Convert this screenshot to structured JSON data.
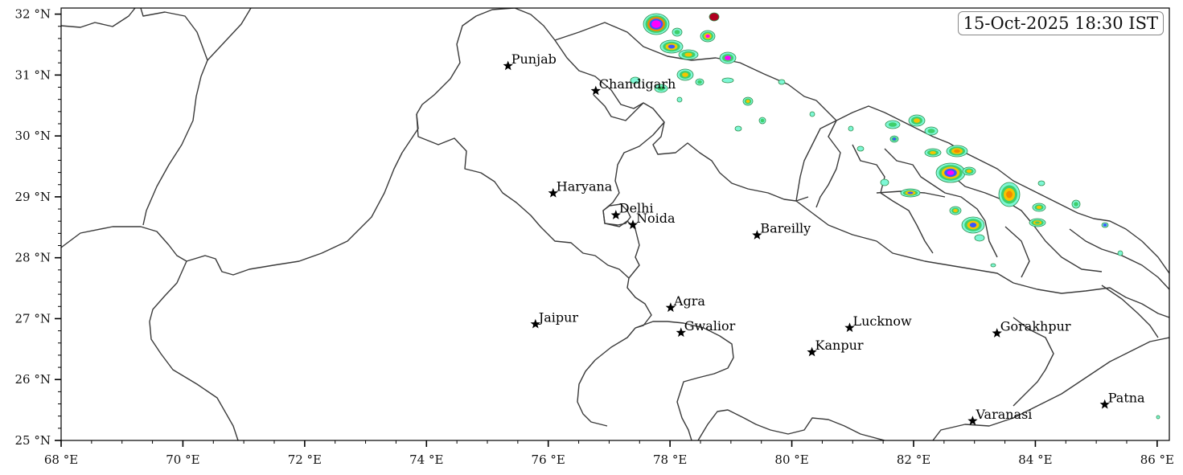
{
  "timestamp": "15-Oct-2025 18:30 IST",
  "axes": {
    "lon_min": 68,
    "lon_max": 86.2,
    "lat_min": 25,
    "lat_max": 32.1,
    "x_ticks": [
      {
        "value": 68,
        "label": "68 °E"
      },
      {
        "value": 70,
        "label": "70 °E"
      },
      {
        "value": 72,
        "label": "72 °E"
      },
      {
        "value": 74,
        "label": "74 °E"
      },
      {
        "value": 76,
        "label": "76 °E"
      },
      {
        "value": 78,
        "label": "78 °E"
      },
      {
        "value": 80,
        "label": "80 °E"
      },
      {
        "value": 82,
        "label": "82 °E"
      },
      {
        "value": 84,
        "label": "84 °E"
      },
      {
        "value": 86,
        "label": "86 °E"
      }
    ],
    "y_ticks": [
      {
        "value": 25,
        "label": "25 °N"
      },
      {
        "value": 26,
        "label": "26 °N"
      },
      {
        "value": 27,
        "label": "27 °N"
      },
      {
        "value": 28,
        "label": "28 °N"
      },
      {
        "value": 29,
        "label": "29 °N"
      },
      {
        "value": 30,
        "label": "30 °N"
      },
      {
        "value": 31,
        "label": "31 °N"
      },
      {
        "value": 32,
        "label": "32 °N"
      }
    ]
  },
  "cities": [
    {
      "name": "Punjab",
      "lon": 75.34,
      "lat": 31.15
    },
    {
      "name": "Chandigarh",
      "lon": 76.78,
      "lat": 30.74
    },
    {
      "name": "Haryana",
      "lon": 76.08,
      "lat": 29.06
    },
    {
      "name": "Delhi",
      "lon": 77.11,
      "lat": 28.7
    },
    {
      "name": "Noida",
      "lon": 77.39,
      "lat": 28.54
    },
    {
      "name": "Bareilly",
      "lon": 79.43,
      "lat": 28.37
    },
    {
      "name": "Agra",
      "lon": 78.01,
      "lat": 27.18
    },
    {
      "name": "Jaipur",
      "lon": 75.79,
      "lat": 26.91
    },
    {
      "name": "Gwalior",
      "lon": 78.18,
      "lat": 26.77
    },
    {
      "name": "Lucknow",
      "lon": 80.95,
      "lat": 26.85
    },
    {
      "name": "Kanpur",
      "lon": 80.33,
      "lat": 26.45
    },
    {
      "name": "Gorakhpur",
      "lon": 83.37,
      "lat": 26.76
    },
    {
      "name": "Patna",
      "lon": 85.14,
      "lat": 25.59
    },
    {
      "name": "Varanasi",
      "lon": 82.97,
      "lat": 25.32
    }
  ],
  "colors": {
    "border": "#3a3a3a",
    "precip_light": "#7ef7d6",
    "precip_mid": "#3fcf6a",
    "precip_mod": "#f5c400",
    "precip_heavy": "#f08a00",
    "precip_vheavy": "#3a55ff",
    "precip_extreme": "#ff00ff",
    "precip_max": "#b00020"
  }
}
